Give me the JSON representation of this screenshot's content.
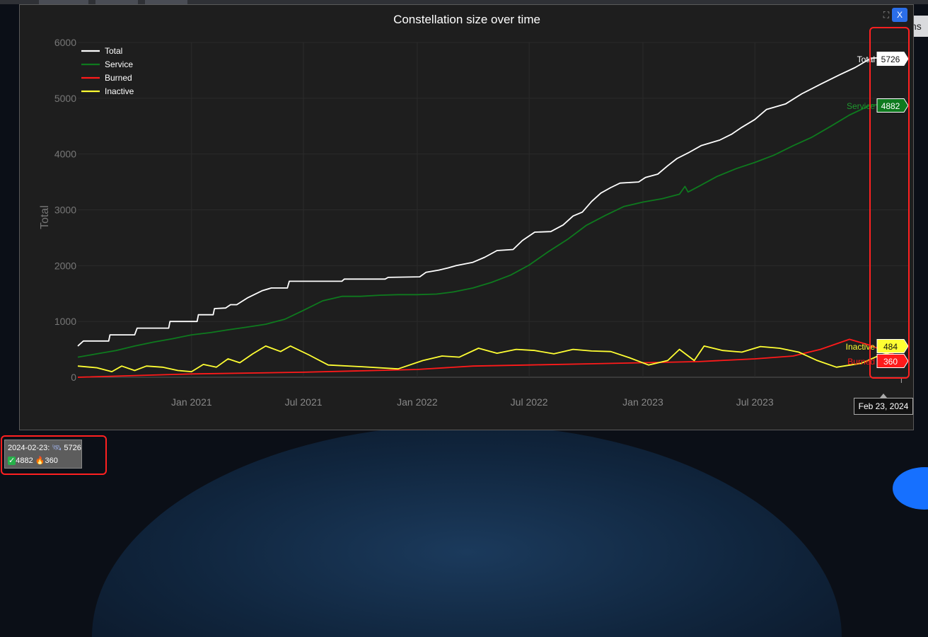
{
  "modal": {
    "close_label": "X",
    "expand_icon": "expand-icon"
  },
  "summary": {
    "date_text": "2024-02-23:",
    "total_icon": "satellite-icon",
    "total": "5726",
    "service_icon": "check-icon",
    "service": "4882",
    "burned_icon": "fire-icon",
    "burned": "360"
  },
  "hover_label": "Feb 23, 2024",
  "side_tab_text": "ns",
  "colors": {
    "background": "#1e1e1e",
    "total": "#ffffff",
    "service": "#0e7a1e",
    "burned": "#ff1a1a",
    "inactive": "#ffff33",
    "highlight": "#ff2020"
  },
  "chart_data": {
    "type": "line",
    "title": "Constellation size over time",
    "ylabel": "Total",
    "xlabel": "",
    "ylim": [
      0,
      6000
    ],
    "yticks": [
      0,
      1000,
      2000,
      3000,
      4000,
      5000,
      6000
    ],
    "xlim": [
      "2020-07-01",
      "2024-03-05"
    ],
    "xticks": [
      {
        "date": "2021-01-01",
        "label": "Jan 2021"
      },
      {
        "date": "2021-07-01",
        "label": "Jul 2021"
      },
      {
        "date": "2022-01-01",
        "label": "Jan 2022"
      },
      {
        "date": "2022-07-01",
        "label": "Jul 2022"
      },
      {
        "date": "2023-01-01",
        "label": "Jan 2023"
      },
      {
        "date": "2023-07-01",
        "label": "Jul 2023"
      }
    ],
    "legend_position": "top-left",
    "grid": true,
    "hover": {
      "date": "2024-02-23",
      "values": {
        "Total": 5726,
        "Service": 4882,
        "Inactive": 484,
        "Burned": 360
      }
    },
    "series": [
      {
        "name": "Total",
        "color": "#ffffff",
        "points": [
          [
            "2020-07-01",
            560
          ],
          [
            "2020-07-10",
            650
          ],
          [
            "2020-08-20",
            650
          ],
          [
            "2020-08-22",
            760
          ],
          [
            "2020-10-01",
            760
          ],
          [
            "2020-10-05",
            880
          ],
          [
            "2020-11-25",
            880
          ],
          [
            "2020-11-27",
            1000
          ],
          [
            "2021-01-10",
            1000
          ],
          [
            "2021-01-12",
            1120
          ],
          [
            "2021-02-05",
            1120
          ],
          [
            "2021-02-07",
            1230
          ],
          [
            "2021-02-25",
            1240
          ],
          [
            "2021-03-05",
            1300
          ],
          [
            "2021-03-15",
            1300
          ],
          [
            "2021-04-01",
            1420
          ],
          [
            "2021-04-25",
            1550
          ],
          [
            "2021-05-10",
            1600
          ],
          [
            "2021-06-05",
            1600
          ],
          [
            "2021-06-08",
            1720
          ],
          [
            "2021-09-01",
            1720
          ],
          [
            "2021-09-05",
            1760
          ],
          [
            "2021-11-10",
            1760
          ],
          [
            "2021-11-15",
            1790
          ],
          [
            "2022-01-05",
            1800
          ],
          [
            "2022-01-15",
            1880
          ],
          [
            "2022-02-05",
            1920
          ],
          [
            "2022-02-20",
            1960
          ],
          [
            "2022-03-05",
            2000
          ],
          [
            "2022-04-01",
            2060
          ],
          [
            "2022-04-20",
            2150
          ],
          [
            "2022-05-10",
            2270
          ],
          [
            "2022-06-05",
            2290
          ],
          [
            "2022-06-20",
            2450
          ],
          [
            "2022-07-10",
            2600
          ],
          [
            "2022-08-05",
            2610
          ],
          [
            "2022-08-25",
            2730
          ],
          [
            "2022-09-10",
            2890
          ],
          [
            "2022-09-25",
            2960
          ],
          [
            "2022-10-10",
            3150
          ],
          [
            "2022-10-25",
            3300
          ],
          [
            "2022-11-10",
            3400
          ],
          [
            "2022-11-25",
            3480
          ],
          [
            "2022-12-25",
            3500
          ],
          [
            "2023-01-05",
            3580
          ],
          [
            "2023-01-25",
            3640
          ],
          [
            "2023-02-10",
            3790
          ],
          [
            "2023-02-25",
            3920
          ],
          [
            "2023-03-15",
            4020
          ],
          [
            "2023-04-05",
            4150
          ],
          [
            "2023-05-05",
            4250
          ],
          [
            "2023-05-25",
            4360
          ],
          [
            "2023-06-10",
            4480
          ],
          [
            "2023-07-01",
            4620
          ],
          [
            "2023-07-20",
            4800
          ],
          [
            "2023-08-20",
            4900
          ],
          [
            "2023-09-15",
            5080
          ],
          [
            "2023-10-15",
            5250
          ],
          [
            "2023-11-15",
            5420
          ],
          [
            "2023-12-10",
            5550
          ],
          [
            "2024-01-05",
            5720
          ],
          [
            "2024-01-20",
            5726
          ],
          [
            "2024-02-23",
            5726
          ]
        ]
      },
      {
        "name": "Service",
        "color": "#0e7a1e",
        "points": [
          [
            "2020-07-01",
            360
          ],
          [
            "2020-08-01",
            420
          ],
          [
            "2020-09-01",
            480
          ],
          [
            "2020-10-01",
            560
          ],
          [
            "2020-11-01",
            630
          ],
          [
            "2020-12-01",
            690
          ],
          [
            "2021-01-01",
            760
          ],
          [
            "2021-02-01",
            800
          ],
          [
            "2021-03-01",
            850
          ],
          [
            "2021-04-01",
            900
          ],
          [
            "2021-05-01",
            950
          ],
          [
            "2021-06-01",
            1040
          ],
          [
            "2021-07-01",
            1200
          ],
          [
            "2021-08-01",
            1370
          ],
          [
            "2021-09-01",
            1450
          ],
          [
            "2021-10-01",
            1450
          ],
          [
            "2021-11-01",
            1470
          ],
          [
            "2021-12-01",
            1480
          ],
          [
            "2022-01-01",
            1480
          ],
          [
            "2022-02-01",
            1490
          ],
          [
            "2022-03-01",
            1530
          ],
          [
            "2022-04-01",
            1600
          ],
          [
            "2022-05-01",
            1700
          ],
          [
            "2022-06-01",
            1830
          ],
          [
            "2022-07-01",
            2010
          ],
          [
            "2022-08-01",
            2250
          ],
          [
            "2022-09-01",
            2470
          ],
          [
            "2022-10-01",
            2720
          ],
          [
            "2022-11-01",
            2900
          ],
          [
            "2022-12-01",
            3060
          ],
          [
            "2023-01-01",
            3140
          ],
          [
            "2023-02-01",
            3200
          ],
          [
            "2023-03-01",
            3280
          ],
          [
            "2023-03-10",
            3420
          ],
          [
            "2023-03-15",
            3320
          ],
          [
            "2023-04-01",
            3420
          ],
          [
            "2023-05-01",
            3600
          ],
          [
            "2023-06-01",
            3740
          ],
          [
            "2023-07-01",
            3850
          ],
          [
            "2023-08-01",
            3980
          ],
          [
            "2023-09-01",
            4150
          ],
          [
            "2023-10-01",
            4300
          ],
          [
            "2023-11-01",
            4500
          ],
          [
            "2023-12-01",
            4700
          ],
          [
            "2024-01-05",
            4882
          ],
          [
            "2024-02-23",
            4882
          ]
        ]
      },
      {
        "name": "Burned",
        "color": "#ff1a1a",
        "points": [
          [
            "2020-07-01",
            0
          ],
          [
            "2021-01-01",
            60
          ],
          [
            "2021-07-01",
            90
          ],
          [
            "2022-01-01",
            140
          ],
          [
            "2022-04-01",
            200
          ],
          [
            "2022-07-01",
            220
          ],
          [
            "2022-10-01",
            240
          ],
          [
            "2023-01-01",
            260
          ],
          [
            "2023-04-01",
            280
          ],
          [
            "2023-07-01",
            330
          ],
          [
            "2023-09-01",
            380
          ],
          [
            "2023-10-15",
            500
          ],
          [
            "2023-12-01",
            680
          ],
          [
            "2024-01-01",
            580
          ],
          [
            "2024-02-23",
            360
          ]
        ]
      },
      {
        "name": "Inactive",
        "color": "#ffff33",
        "points": [
          [
            "2020-07-01",
            200
          ],
          [
            "2020-08-01",
            170
          ],
          [
            "2020-08-25",
            100
          ],
          [
            "2020-09-10",
            200
          ],
          [
            "2020-10-01",
            120
          ],
          [
            "2020-10-20",
            200
          ],
          [
            "2020-11-15",
            180
          ],
          [
            "2020-12-10",
            120
          ],
          [
            "2021-01-01",
            100
          ],
          [
            "2021-01-20",
            230
          ],
          [
            "2021-02-10",
            180
          ],
          [
            "2021-03-01",
            330
          ],
          [
            "2021-03-20",
            260
          ],
          [
            "2021-04-10",
            420
          ],
          [
            "2021-05-01",
            560
          ],
          [
            "2021-05-25",
            460
          ],
          [
            "2021-06-10",
            560
          ],
          [
            "2021-07-10",
            400
          ],
          [
            "2021-08-10",
            220
          ],
          [
            "2021-10-01",
            190
          ],
          [
            "2021-12-01",
            150
          ],
          [
            "2022-01-10",
            300
          ],
          [
            "2022-02-10",
            380
          ],
          [
            "2022-03-10",
            360
          ],
          [
            "2022-04-10",
            520
          ],
          [
            "2022-05-10",
            430
          ],
          [
            "2022-06-10",
            500
          ],
          [
            "2022-07-10",
            480
          ],
          [
            "2022-08-10",
            420
          ],
          [
            "2022-09-10",
            500
          ],
          [
            "2022-10-10",
            470
          ],
          [
            "2022-11-10",
            460
          ],
          [
            "2022-12-10",
            350
          ],
          [
            "2023-01-10",
            220
          ],
          [
            "2023-02-10",
            300
          ],
          [
            "2023-03-01",
            500
          ],
          [
            "2023-03-25",
            300
          ],
          [
            "2023-04-10",
            560
          ],
          [
            "2023-05-10",
            480
          ],
          [
            "2023-06-10",
            450
          ],
          [
            "2023-07-10",
            550
          ],
          [
            "2023-08-10",
            520
          ],
          [
            "2023-09-10",
            450
          ],
          [
            "2023-10-10",
            300
          ],
          [
            "2023-11-10",
            180
          ],
          [
            "2023-12-20",
            250
          ],
          [
            "2024-01-20",
            400
          ],
          [
            "2024-02-23",
            484
          ]
        ]
      }
    ]
  }
}
